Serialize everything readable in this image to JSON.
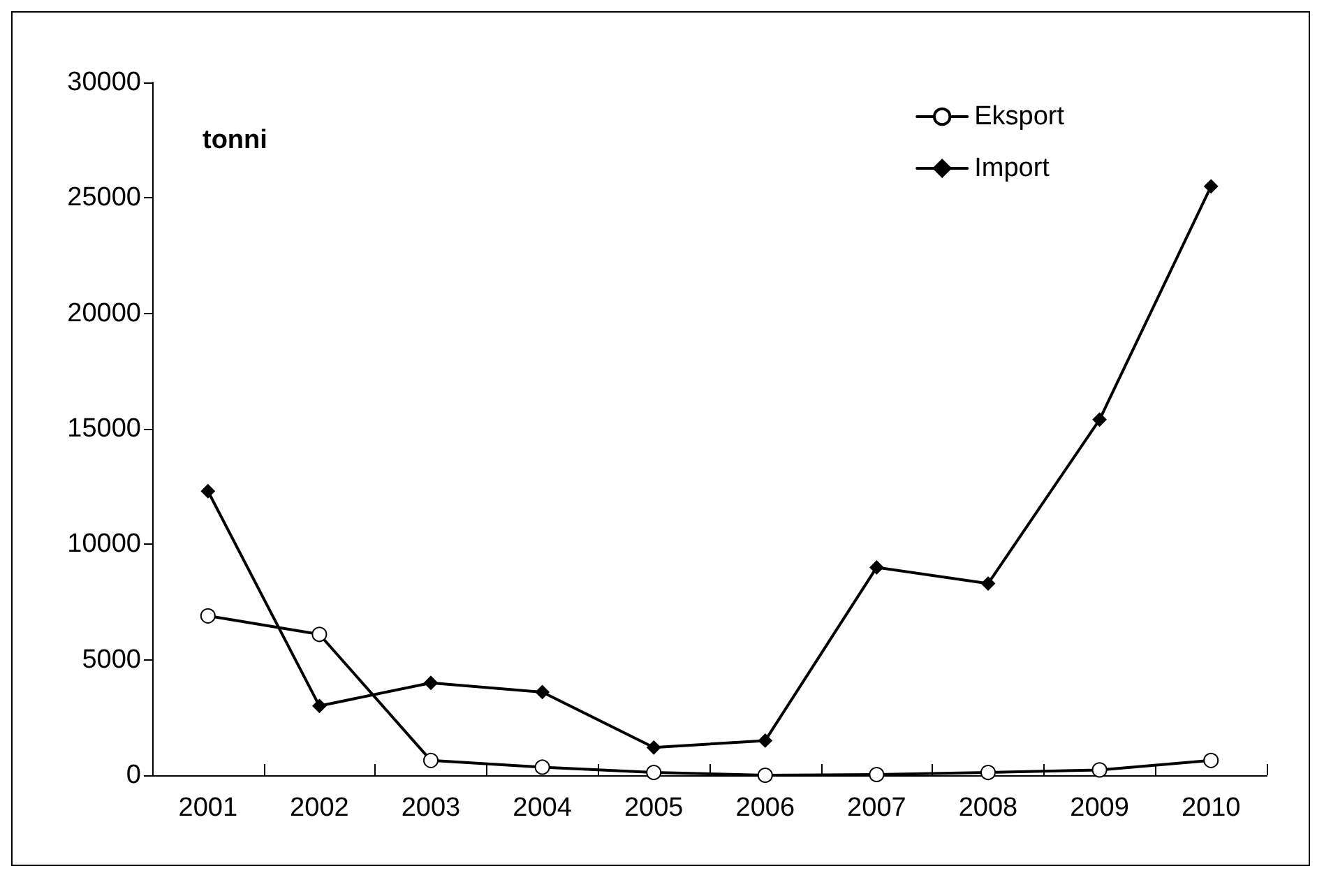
{
  "chart_data": {
    "type": "line",
    "ylabel": "tonni",
    "categories": [
      "2001",
      "2002",
      "2003",
      "2004",
      "2005",
      "2006",
      "2007",
      "2008",
      "2009",
      "2010"
    ],
    "series": [
      {
        "name": "Eksport",
        "color": "#000000",
        "marker": "circle",
        "values": [
          6900,
          6100,
          640,
          350,
          120,
          0,
          30,
          120,
          230,
          640
        ]
      },
      {
        "name": "Import",
        "color": "#000000",
        "marker": "diamond",
        "values": [
          12300,
          3000,
          4000,
          3600,
          1200,
          1500,
          9000,
          8300,
          15400,
          25500
        ]
      }
    ],
    "ylim": [
      0,
      30000
    ],
    "yticks": [
      0,
      5000,
      10000,
      15000,
      20000,
      25000,
      30000
    ],
    "grid": false,
    "legend": "top right",
    "line_style": "solid"
  }
}
